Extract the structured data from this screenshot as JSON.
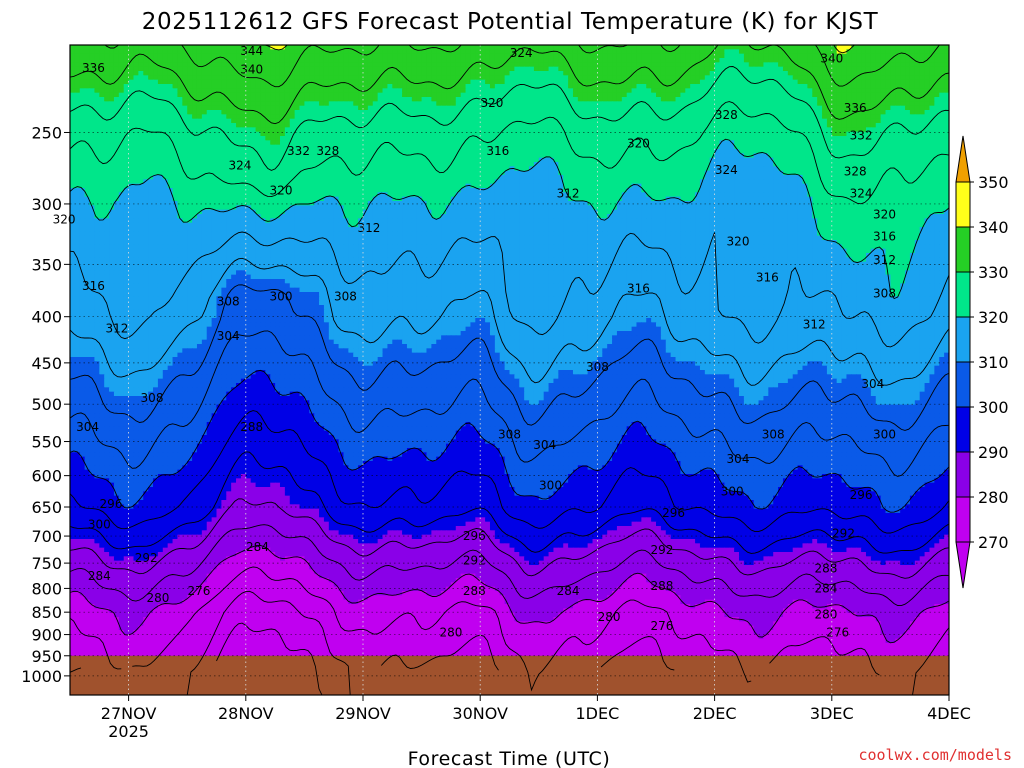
{
  "chart_data": {
    "type": "heatmap",
    "title": "2025112612 GFS Forecast Potential Temperature (K) for KJST",
    "xlabel": "Forecast Time (UTC)",
    "ylabel": "",
    "x_ticks": [
      {
        "value": 1,
        "label": "27NOV",
        "sublabel": "2025"
      },
      {
        "value": 2,
        "label": "28NOV"
      },
      {
        "value": 3,
        "label": "29NOV"
      },
      {
        "value": 4,
        "label": "30NOV"
      },
      {
        "value": 5,
        "label": "1DEC"
      },
      {
        "value": 6,
        "label": "2DEC"
      },
      {
        "value": 7,
        "label": "3DEC"
      },
      {
        "value": 8,
        "label": "4DEC"
      }
    ],
    "xlim": [
      0.5,
      8.0
    ],
    "y_scale": "log-pressure",
    "y_unit": "hPa",
    "y_ticks": [
      250,
      300,
      350,
      400,
      450,
      500,
      550,
      600,
      650,
      700,
      750,
      800,
      850,
      900,
      950,
      1000
    ],
    "ylim": [
      1050,
      200
    ],
    "colorbar": {
      "levels": [
        270,
        280,
        290,
        300,
        310,
        320,
        330,
        340,
        350
      ],
      "colors": [
        "#c000f0",
        "#c000f0",
        "#8a00e8",
        "#0000e6",
        "#0a5ae8",
        "#1aa3f0",
        "#00e68a",
        "#25cf25",
        "#ffff1a",
        "#f0a000"
      ],
      "extends": "both",
      "tick_labels": [
        "270",
        "280",
        "290",
        "300",
        "310",
        "320",
        "330",
        "340",
        "350"
      ]
    },
    "grid": true,
    "theta_profile": [
      {
        "p": 1000,
        "theta": 272
      },
      {
        "p": 850,
        "theta": 278
      },
      {
        "p": 750,
        "theta": 286
      },
      {
        "p": 650,
        "theta": 296
      },
      {
        "p": 500,
        "theta": 306
      },
      {
        "p": 400,
        "theta": 314
      },
      {
        "p": 300,
        "theta": 320
      },
      {
        "p": 250,
        "theta": 326
      },
      {
        "p": 200,
        "theta": 336
      }
    ],
    "contour_labels": [
      {
        "text": "336",
        "x": 0.7,
        "p": 212
      },
      {
        "text": "344",
        "x": 2.05,
        "p": 203
      },
      {
        "text": "340",
        "x": 2.05,
        "p": 213
      },
      {
        "text": "332",
        "x": 2.45,
        "p": 262
      },
      {
        "text": "328",
        "x": 2.7,
        "p": 262
      },
      {
        "text": "324",
        "x": 1.95,
        "p": 272
      },
      {
        "text": "320",
        "x": 2.3,
        "p": 290
      },
      {
        "text": "324",
        "x": 4.35,
        "p": 204
      },
      {
        "text": "320",
        "x": 4.1,
        "p": 232
      },
      {
        "text": "316",
        "x": 4.15,
        "p": 262
      },
      {
        "text": "320",
        "x": 5.35,
        "p": 257
      },
      {
        "text": "312",
        "x": 3.05,
        "p": 319
      },
      {
        "text": "312",
        "x": 4.75,
        "p": 292
      },
      {
        "text": "328",
        "x": 6.1,
        "p": 239
      },
      {
        "text": "324",
        "x": 6.1,
        "p": 275
      },
      {
        "text": "320",
        "x": 6.2,
        "p": 330
      },
      {
        "text": "316",
        "x": 6.45,
        "p": 362
      },
      {
        "text": "340",
        "x": 7.0,
        "p": 207
      },
      {
        "text": "336",
        "x": 7.2,
        "p": 235
      },
      {
        "text": "332",
        "x": 7.25,
        "p": 252
      },
      {
        "text": "328",
        "x": 7.2,
        "p": 276
      },
      {
        "text": "324",
        "x": 7.25,
        "p": 292
      },
      {
        "text": "320",
        "x": 7.45,
        "p": 308
      },
      {
        "text": "316",
        "x": 7.45,
        "p": 326
      },
      {
        "text": "312",
        "x": 7.45,
        "p": 346
      },
      {
        "text": "308",
        "x": 7.45,
        "p": 377
      },
      {
        "text": "320",
        "x": 0.45,
        "p": 312
      },
      {
        "text": "316",
        "x": 0.7,
        "p": 370
      },
      {
        "text": "312",
        "x": 0.9,
        "p": 412
      },
      {
        "text": "308",
        "x": 1.85,
        "p": 385
      },
      {
        "text": "304",
        "x": 1.85,
        "p": 420
      },
      {
        "text": "300",
        "x": 2.3,
        "p": 380
      },
      {
        "text": "308",
        "x": 2.85,
        "p": 380
      },
      {
        "text": "316",
        "x": 5.35,
        "p": 372
      },
      {
        "text": "312",
        "x": 6.85,
        "p": 408
      },
      {
        "text": "308",
        "x": 5.0,
        "p": 455
      },
      {
        "text": "308",
        "x": 1.2,
        "p": 492
      },
      {
        "text": "304",
        "x": 0.65,
        "p": 530
      },
      {
        "text": "288",
        "x": 2.05,
        "p": 530
      },
      {
        "text": "308",
        "x": 4.25,
        "p": 540
      },
      {
        "text": "304",
        "x": 4.55,
        "p": 555
      },
      {
        "text": "308",
        "x": 6.5,
        "p": 540
      },
      {
        "text": "304",
        "x": 6.2,
        "p": 575
      },
      {
        "text": "304",
        "x": 7.35,
        "p": 475
      },
      {
        "text": "300",
        "x": 7.45,
        "p": 540
      },
      {
        "text": "300",
        "x": 4.6,
        "p": 615
      },
      {
        "text": "300",
        "x": 6.15,
        "p": 625
      },
      {
        "text": "296",
        "x": 0.85,
        "p": 645
      },
      {
        "text": "300",
        "x": 0.75,
        "p": 680
      },
      {
        "text": "296",
        "x": 3.95,
        "p": 700
      },
      {
        "text": "296",
        "x": 5.65,
        "p": 660
      },
      {
        "text": "296",
        "x": 7.25,
        "p": 630
      },
      {
        "text": "292",
        "x": 1.15,
        "p": 740
      },
      {
        "text": "292",
        "x": 3.95,
        "p": 745
      },
      {
        "text": "292",
        "x": 5.55,
        "p": 725
      },
      {
        "text": "292",
        "x": 7.1,
        "p": 695
      },
      {
        "text": "284",
        "x": 2.1,
        "p": 720
      },
      {
        "text": "284",
        "x": 0.75,
        "p": 775
      },
      {
        "text": "280",
        "x": 1.25,
        "p": 820
      },
      {
        "text": "276",
        "x": 1.6,
        "p": 805
      },
      {
        "text": "288",
        "x": 3.95,
        "p": 805
      },
      {
        "text": "284",
        "x": 4.75,
        "p": 805
      },
      {
        "text": "288",
        "x": 5.55,
        "p": 795
      },
      {
        "text": "288",
        "x": 6.95,
        "p": 760
      },
      {
        "text": "284",
        "x": 6.95,
        "p": 800
      },
      {
        "text": "280",
        "x": 5.1,
        "p": 860
      },
      {
        "text": "280",
        "x": 3.75,
        "p": 895
      },
      {
        "text": "276",
        "x": 5.55,
        "p": 880
      },
      {
        "text": "280",
        "x": 6.95,
        "p": 855
      },
      {
        "text": "276",
        "x": 7.05,
        "p": 895
      }
    ]
  },
  "footer": {
    "source_label": "coolwx.com/models"
  }
}
